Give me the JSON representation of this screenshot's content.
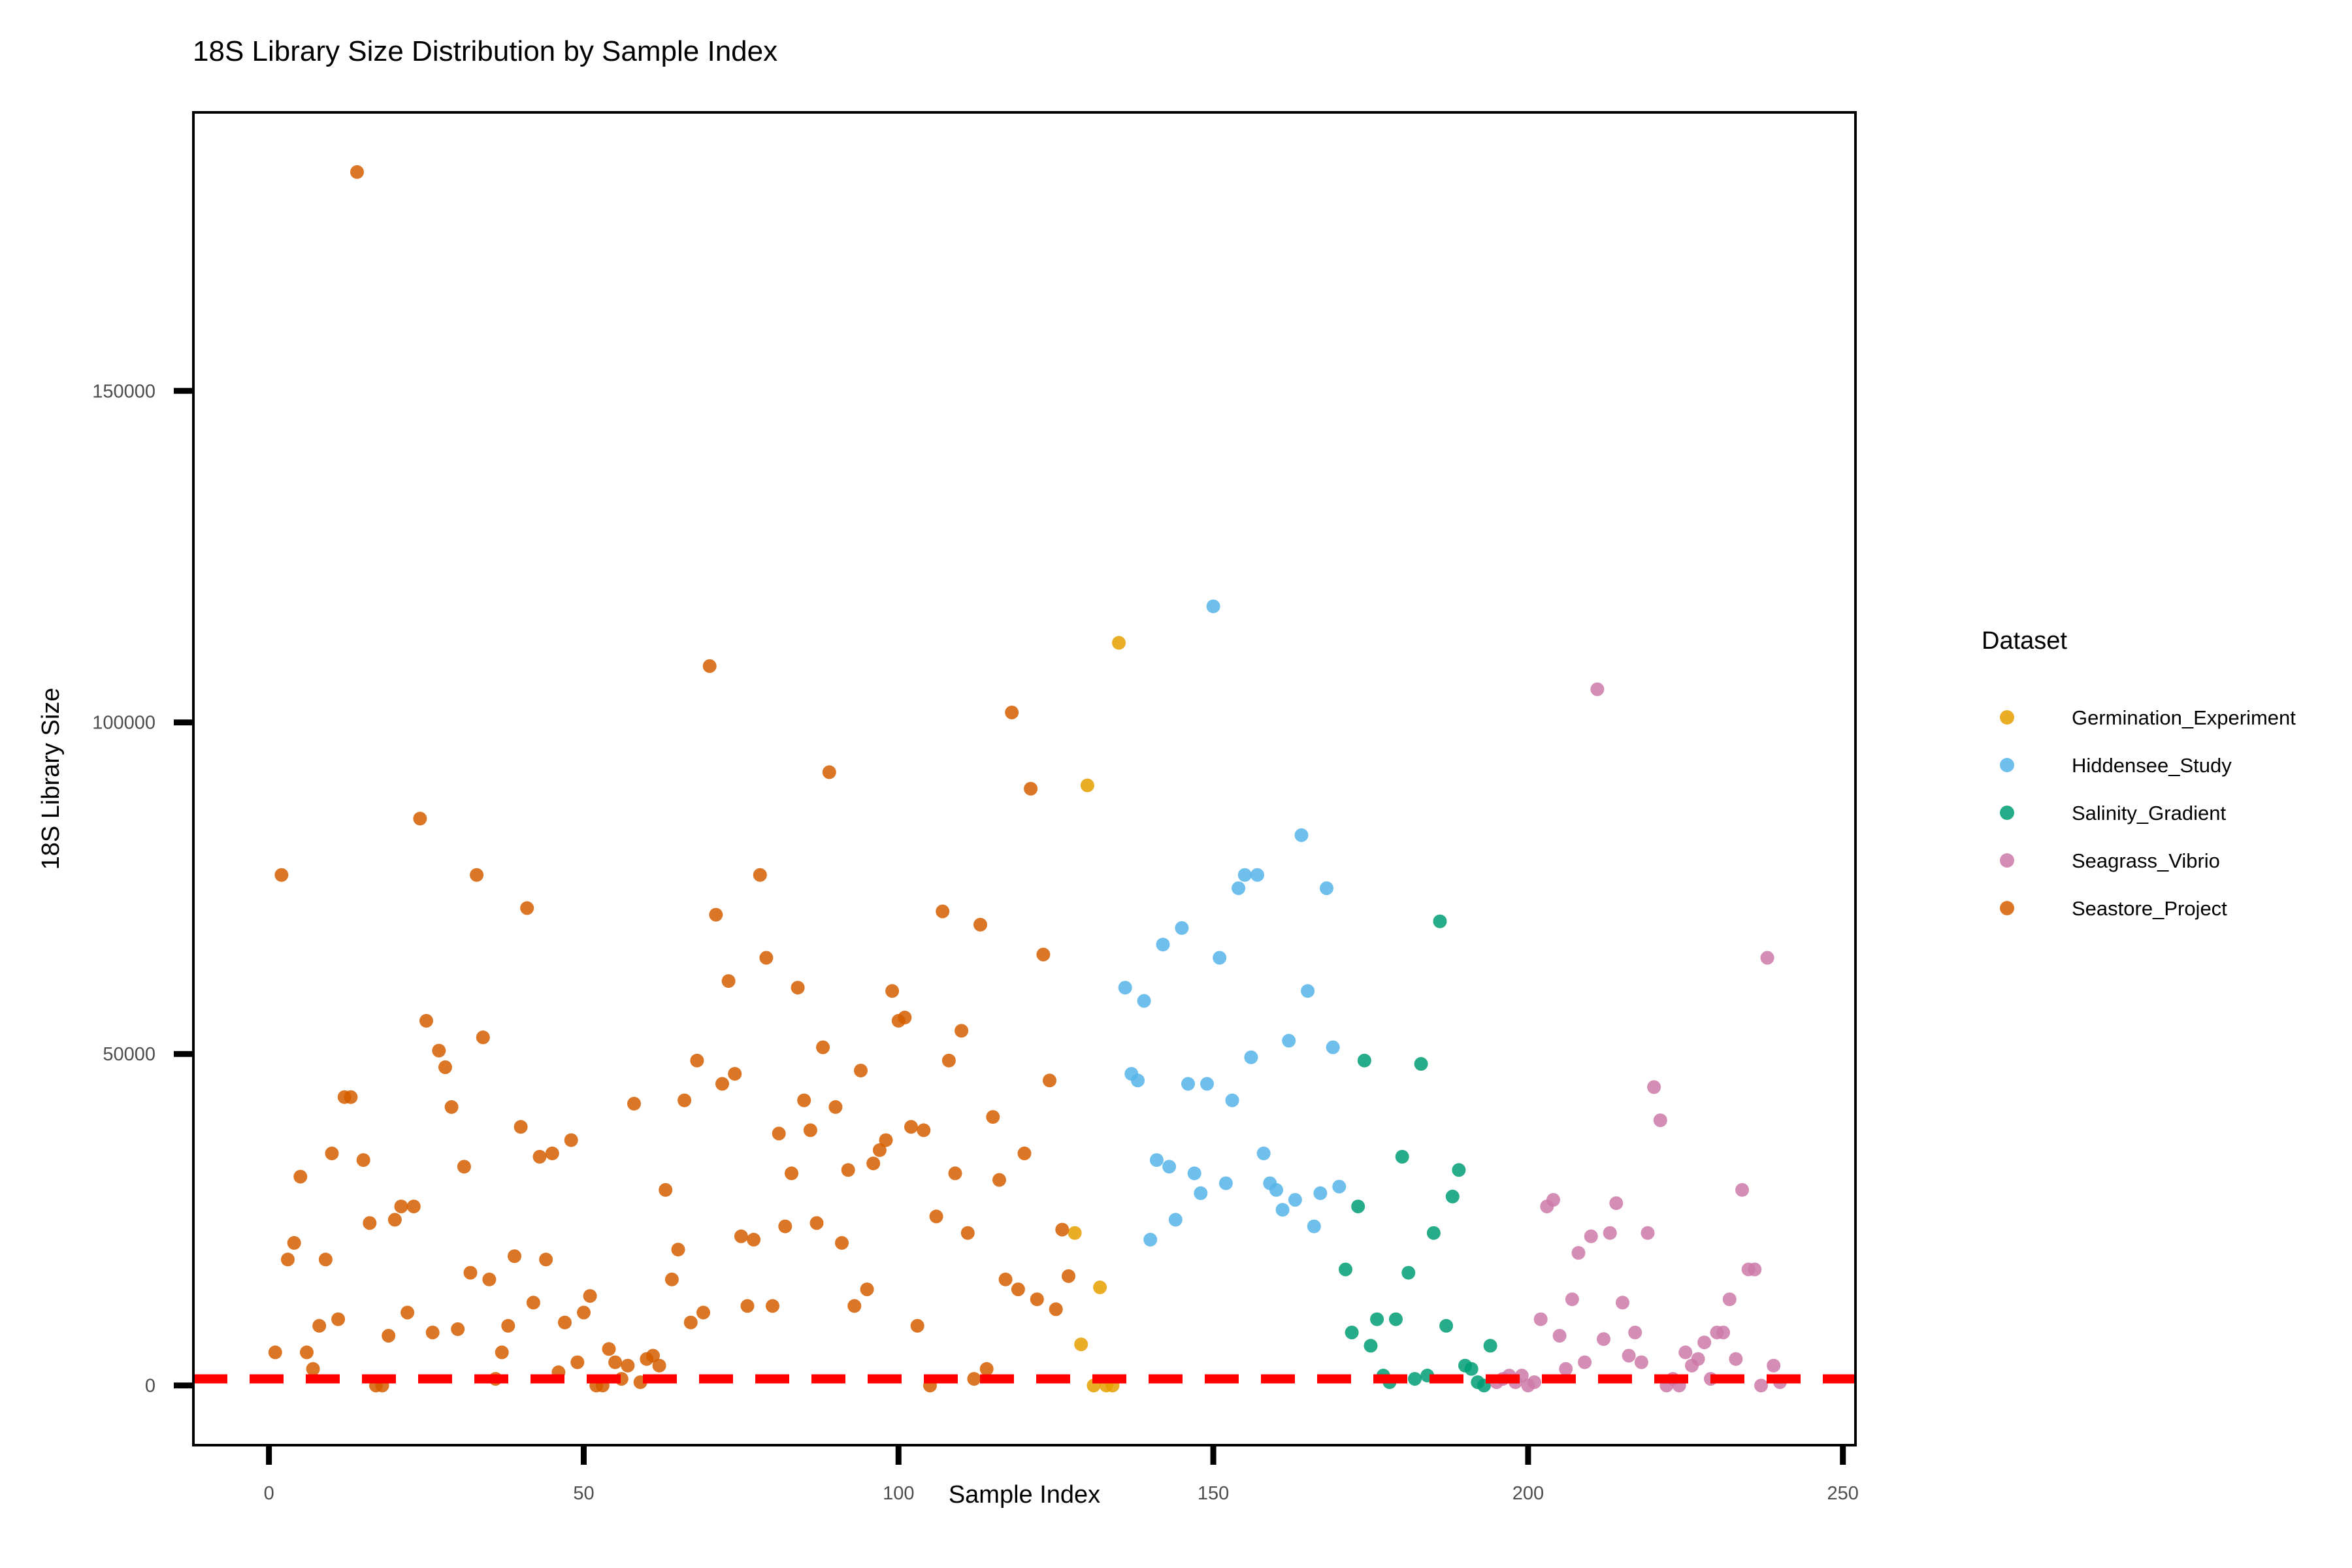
{
  "chart_data": {
    "type": "scatter",
    "title": "18S Library Size Distribution by Sample Index",
    "xlabel": "Sample Index",
    "ylabel": "18S Library Size",
    "xlim": [
      -12,
      252
    ],
    "ylim": [
      -9000,
      192000
    ],
    "xticks": [
      0,
      50,
      100,
      150,
      200,
      250
    ],
    "yticks": [
      0,
      50000,
      100000,
      150000
    ],
    "xtick_labels": [
      "0",
      "50",
      "100",
      "150",
      "200",
      "250"
    ],
    "ytick_labels": [
      "0",
      "50000",
      "100000",
      "150000"
    ],
    "grid": false,
    "legend": {
      "title": "Dataset",
      "placement": "right"
    },
    "threshold": {
      "value": 1000,
      "color": "#ff0000",
      "style": "dashed"
    },
    "series": [
      {
        "name": "Germination_Experiment",
        "color": "#E69F00",
        "x": [
          128,
          129,
          130,
          131,
          132,
          133,
          134,
          135
        ],
        "y": [
          23000,
          6200,
          90500,
          0,
          14800,
          0,
          0,
          112000
        ]
      },
      {
        "name": "Hiddensee_Study",
        "color": "#56B4E9",
        "x": [
          136,
          137,
          138,
          139,
          140,
          141,
          142,
          143,
          144,
          145,
          146,
          147,
          148,
          149,
          150,
          151,
          152,
          153,
          154,
          155,
          156,
          157,
          158,
          159,
          160,
          161,
          162,
          163,
          164,
          165,
          166,
          167,
          168,
          169,
          170
        ],
        "y": [
          60000,
          47000,
          46000,
          58000,
          22000,
          34000,
          66500,
          33000,
          25000,
          69000,
          45500,
          32000,
          29000,
          45500,
          117500,
          64500,
          30500,
          43000,
          75000,
          77000,
          49500,
          77000,
          35000,
          30500,
          29500,
          26500,
          52000,
          28000,
          83000,
          59500,
          24000,
          29000,
          75000,
          51000,
          30000
        ]
      },
      {
        "name": "Salinity_Gradient",
        "color": "#009E73",
        "x": [
          171,
          172,
          173,
          174,
          175,
          176,
          177,
          178,
          179,
          180,
          181,
          182,
          183,
          184,
          185,
          186,
          187,
          188,
          189,
          190,
          191,
          192,
          193,
          194
        ],
        "y": [
          17500,
          8000,
          27000,
          49000,
          6000,
          10000,
          1500,
          500,
          10000,
          34500,
          17000,
          1000,
          48500,
          1500,
          23000,
          70000,
          9000,
          28500,
          32500,
          3000,
          2500,
          500,
          0,
          6000
        ]
      },
      {
        "name": "Seagrass_Vibrio",
        "color": "#CC79A7",
        "x": [
          195,
          196,
          197,
          198,
          199,
          200,
          201,
          202,
          203,
          204,
          205,
          206,
          207,
          208,
          209,
          210,
          211,
          212,
          213,
          214,
          215,
          216,
          217,
          218,
          219,
          220,
          221,
          222,
          223,
          224,
          225,
          226,
          227,
          228,
          229,
          230,
          231,
          232,
          233,
          234,
          235,
          236,
          237,
          238,
          239,
          240
        ],
        "y": [
          500,
          1000,
          1500,
          500,
          1500,
          0,
          500,
          10000,
          27000,
          28000,
          7500,
          2500,
          13000,
          20000,
          3500,
          22500,
          105000,
          7000,
          23000,
          27500,
          12500,
          4500,
          8000,
          3500,
          23000,
          45000,
          40000,
          0,
          1000,
          0,
          5000,
          3000,
          4000,
          6500,
          1000,
          8000,
          8000,
          13000,
          4000,
          29500,
          17500,
          17500,
          0,
          64500,
          3000,
          500
        ]
      },
      {
        "name": "Seastore_Project",
        "color": "#D55E00",
        "x": [
          1,
          2,
          3,
          4,
          5,
          6,
          7,
          8,
          9,
          10,
          11,
          12,
          13,
          14,
          15,
          16,
          17,
          18,
          19,
          20,
          21,
          22,
          23,
          24,
          25,
          26,
          27,
          28,
          29,
          30,
          31,
          32,
          33,
          34,
          35,
          36,
          37,
          38,
          39,
          40,
          41,
          42,
          43,
          44,
          45,
          46,
          47,
          48,
          49,
          50,
          51,
          52,
          53,
          54,
          55,
          56,
          57,
          58,
          59,
          60,
          61,
          62,
          63,
          64,
          65,
          66,
          67,
          68,
          69,
          70,
          71,
          72,
          73,
          74,
          75,
          76,
          77,
          78,
          79,
          80,
          81,
          82,
          83,
          84,
          85,
          86,
          87,
          88,
          89,
          90,
          91,
          92,
          93,
          94,
          95,
          96,
          97,
          98,
          99,
          100,
          101,
          102,
          103,
          104,
          105,
          106,
          107,
          108,
          109,
          110,
          111,
          112,
          113,
          114,
          115,
          116,
          117,
          118,
          119,
          120,
          121,
          122,
          123,
          124,
          125,
          126,
          127
        ],
        "y": [
          5000,
          77000,
          19000,
          21500,
          31500,
          5000,
          2500,
          9000,
          19000,
          35000,
          10000,
          43500,
          43500,
          183000,
          34000,
          24500,
          0,
          0,
          7500,
          25000,
          27000,
          11000,
          27000,
          85500,
          55000,
          8000,
          50500,
          48000,
          42000,
          8500,
          33000,
          17000,
          77000,
          52500,
          16000,
          1000,
          5000,
          9000,
          19500,
          39000,
          72000,
          12500,
          34500,
          19000,
          35000,
          2000,
          9500,
          37000,
          3500,
          11000,
          13500,
          0,
          0,
          5500,
          3500,
          1000,
          3000,
          42500,
          500,
          4000,
          4500,
          3000,
          29500,
          16000,
          20500,
          43000,
          9500,
          49000,
          11000,
          108500,
          71000,
          45500,
          61000,
          47000,
          22500,
          12000,
          22000,
          77000,
          64500,
          12000,
          38000,
          24000,
          32000,
          60000,
          43000,
          38500,
          24500,
          51000,
          92500,
          42000,
          21500,
          32500,
          12000,
          47500,
          14500,
          33500,
          35500,
          37000,
          59500,
          55000,
          55500,
          39000,
          9000,
          38500,
          0,
          25500,
          71500,
          49000,
          32000,
          53500,
          23000,
          1000,
          69500,
          2500,
          40500,
          31000,
          16000,
          101500,
          14500,
          35000,
          90000,
          13000,
          65000,
          46000,
          11500,
          23500,
          16500
        ]
      }
    ]
  }
}
